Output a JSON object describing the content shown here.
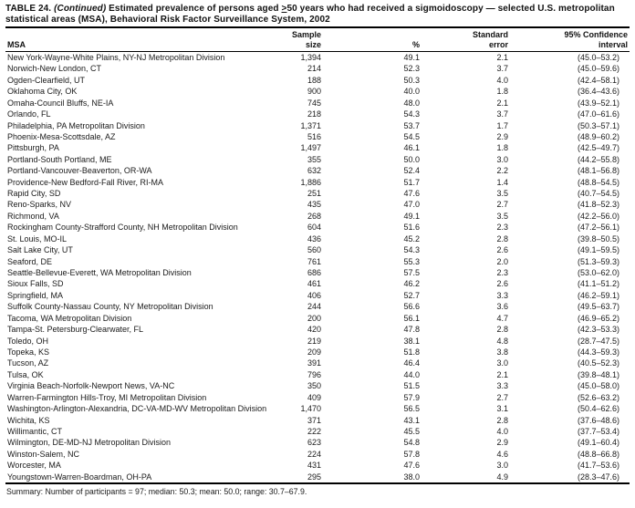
{
  "title": {
    "table_label": "TABLE 24.",
    "continued": "(Continued)",
    "segment_before": "Estimated prevalence of persons aged",
    "gte_symbol": ">",
    "segment_after": "50 years who had received a sigmoidoscopy — selected U.S. metropolitan statistical areas (MSA), Behavioral Risk Factor Surveillance System, 2002"
  },
  "table": {
    "columns": [
      {
        "line1": "",
        "line2": "MSA"
      },
      {
        "line1": "Sample",
        "line2": "size"
      },
      {
        "line1": "",
        "line2": "%"
      },
      {
        "line1": "Standard",
        "line2": "error"
      },
      {
        "line1": "95% Confidence",
        "line2": "interval"
      }
    ],
    "rows": [
      {
        "msa": "New York-Wayne-White Plains, NY-NJ Metropolitan Division",
        "sample_size": "1,394",
        "percent": "49.1",
        "standard_error": "2.1",
        "confidence_interval": "(45.0–53.2)"
      },
      {
        "msa": "Norwich-New London, CT",
        "sample_size": "214",
        "percent": "52.3",
        "standard_error": "3.7",
        "confidence_interval": "(45.0–59.6)"
      },
      {
        "msa": "Ogden-Clearfield, UT",
        "sample_size": "188",
        "percent": "50.3",
        "standard_error": "4.0",
        "confidence_interval": "(42.4–58.1)"
      },
      {
        "msa": "Oklahoma City, OK",
        "sample_size": "900",
        "percent": "40.0",
        "standard_error": "1.8",
        "confidence_interval": "(36.4–43.6)"
      },
      {
        "msa": "Omaha-Council Bluffs, NE-IA",
        "sample_size": "745",
        "percent": "48.0",
        "standard_error": "2.1",
        "confidence_interval": "(43.9–52.1)"
      },
      {
        "msa": "Orlando, FL",
        "sample_size": "218",
        "percent": "54.3",
        "standard_error": "3.7",
        "confidence_interval": "(47.0–61.6)"
      },
      {
        "msa": "Philadelphia, PA Metropolitan Division",
        "sample_size": "1,371",
        "percent": "53.7",
        "standard_error": "1.7",
        "confidence_interval": "(50.3–57.1)"
      },
      {
        "msa": "Phoenix-Mesa-Scottsdale, AZ",
        "sample_size": "516",
        "percent": "54.5",
        "standard_error": "2.9",
        "confidence_interval": "(48.9–60.2)"
      },
      {
        "msa": "Pittsburgh, PA",
        "sample_size": "1,497",
        "percent": "46.1",
        "standard_error": "1.8",
        "confidence_interval": "(42.5–49.7)"
      },
      {
        "msa": "Portland-South Portland, ME",
        "sample_size": "355",
        "percent": "50.0",
        "standard_error": "3.0",
        "confidence_interval": "(44.2–55.8)"
      },
      {
        "msa": "Portland-Vancouver-Beaverton, OR-WA",
        "sample_size": "632",
        "percent": "52.4",
        "standard_error": "2.2",
        "confidence_interval": "(48.1–56.8)"
      },
      {
        "msa": "Providence-New Bedford-Fall River, RI-MA",
        "sample_size": "1,886",
        "percent": "51.7",
        "standard_error": "1.4",
        "confidence_interval": "(48.8–54.5)"
      },
      {
        "msa": "Rapid City, SD",
        "sample_size": "251",
        "percent": "47.6",
        "standard_error": "3.5",
        "confidence_interval": "(40.7–54.5)"
      },
      {
        "msa": "Reno-Sparks, NV",
        "sample_size": "435",
        "percent": "47.0",
        "standard_error": "2.7",
        "confidence_interval": "(41.8–52.3)"
      },
      {
        "msa": "Richmond, VA",
        "sample_size": "268",
        "percent": "49.1",
        "standard_error": "3.5",
        "confidence_interval": "(42.2–56.0)"
      },
      {
        "msa": "Rockingham County-Strafford County, NH Metropolitan Division",
        "sample_size": "604",
        "percent": "51.6",
        "standard_error": "2.3",
        "confidence_interval": "(47.2–56.1)"
      },
      {
        "msa": "St. Louis, MO-IL",
        "sample_size": "436",
        "percent": "45.2",
        "standard_error": "2.8",
        "confidence_interval": "(39.8–50.5)"
      },
      {
        "msa": "Salt Lake City, UT",
        "sample_size": "560",
        "percent": "54.3",
        "standard_error": "2.6",
        "confidence_interval": "(49.1–59.5)"
      },
      {
        "msa": "Seaford, DE",
        "sample_size": "761",
        "percent": "55.3",
        "standard_error": "2.0",
        "confidence_interval": "(51.3–59.3)"
      },
      {
        "msa": "Seattle-Bellevue-Everett, WA Metropolitan Division",
        "sample_size": "686",
        "percent": "57.5",
        "standard_error": "2.3",
        "confidence_interval": "(53.0–62.0)"
      },
      {
        "msa": "Sioux Falls, SD",
        "sample_size": "461",
        "percent": "46.2",
        "standard_error": "2.6",
        "confidence_interval": "(41.1–51.2)"
      },
      {
        "msa": "Springfield, MA",
        "sample_size": "406",
        "percent": "52.7",
        "standard_error": "3.3",
        "confidence_interval": "(46.2–59.1)"
      },
      {
        "msa": "Suffolk County-Nassau County, NY Metropolitan Division",
        "sample_size": "244",
        "percent": "56.6",
        "standard_error": "3.6",
        "confidence_interval": "(49.5–63.7)"
      },
      {
        "msa": "Tacoma, WA Metropolitan Division",
        "sample_size": "200",
        "percent": "56.1",
        "standard_error": "4.7",
        "confidence_interval": "(46.9–65.2)"
      },
      {
        "msa": "Tampa-St. Petersburg-Clearwater, FL",
        "sample_size": "420",
        "percent": "47.8",
        "standard_error": "2.8",
        "confidence_interval": "(42.3–53.3)"
      },
      {
        "msa": "Toledo, OH",
        "sample_size": "219",
        "percent": "38.1",
        "standard_error": "4.8",
        "confidence_interval": "(28.7–47.5)"
      },
      {
        "msa": "Topeka, KS",
        "sample_size": "209",
        "percent": "51.8",
        "standard_error": "3.8",
        "confidence_interval": "(44.3–59.3)"
      },
      {
        "msa": "Tucson, AZ",
        "sample_size": "391",
        "percent": "46.4",
        "standard_error": "3.0",
        "confidence_interval": "(40.5–52.3)"
      },
      {
        "msa": "Tulsa, OK",
        "sample_size": "796",
        "percent": "44.0",
        "standard_error": "2.1",
        "confidence_interval": "(39.8–48.1)"
      },
      {
        "msa": "Virginia Beach-Norfolk-Newport News, VA-NC",
        "sample_size": "350",
        "percent": "51.5",
        "standard_error": "3.3",
        "confidence_interval": "(45.0–58.0)"
      },
      {
        "msa": "Warren-Farmington Hills-Troy, MI Metropolitan Division",
        "sample_size": "409",
        "percent": "57.9",
        "standard_error": "2.7",
        "confidence_interval": "(52.6–63.2)"
      },
      {
        "msa": "Washington-Arlington-Alexandria, DC-VA-MD-WV Metropolitan Division",
        "sample_size": "1,470",
        "percent": "56.5",
        "standard_error": "3.1",
        "confidence_interval": "(50.4–62.6)"
      },
      {
        "msa": "Wichita, KS",
        "sample_size": "371",
        "percent": "43.1",
        "standard_error": "2.8",
        "confidence_interval": "(37.6–48.6)"
      },
      {
        "msa": "Willimantic, CT",
        "sample_size": "222",
        "percent": "45.5",
        "standard_error": "4.0",
        "confidence_interval": "(37.7–53.4)"
      },
      {
        "msa": "Wilmington, DE-MD-NJ Metropolitan Division",
        "sample_size": "623",
        "percent": "54.8",
        "standard_error": "2.9",
        "confidence_interval": "(49.1–60.4)"
      },
      {
        "msa": "Winston-Salem, NC",
        "sample_size": "224",
        "percent": "57.8",
        "standard_error": "4.6",
        "confidence_interval": "(48.8–66.8)"
      },
      {
        "msa": "Worcester, MA",
        "sample_size": "431",
        "percent": "47.6",
        "standard_error": "3.0",
        "confidence_interval": "(41.7–53.6)"
      },
      {
        "msa": "Youngstown-Warren-Boardman, OH-PA",
        "sample_size": "295",
        "percent": "38.0",
        "standard_error": "4.9",
        "confidence_interval": "(28.3–47.6)"
      }
    ]
  },
  "summary": "Summary: Number of participants = 97; median: 50.3; mean: 50.0; range: 30.7–67.9."
}
